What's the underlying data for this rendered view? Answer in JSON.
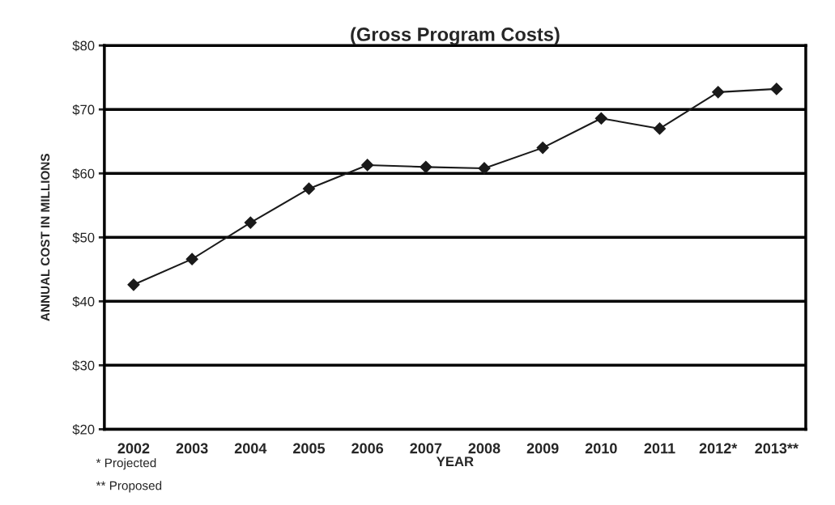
{
  "chart_data": {
    "type": "line",
    "title": "(Gross Program Costs)",
    "xlabel": "YEAR",
    "ylabel": "ANNUAL COST IN MILLIONS",
    "categories": [
      "2002",
      "2003",
      "2004",
      "2005",
      "2006",
      "2007",
      "2008",
      "2009",
      "2010",
      "2011",
      "2012*",
      "2013**"
    ],
    "series": [
      {
        "color": "#1a1a1a",
        "values": [
          42.6,
          46.6,
          52.3,
          57.6,
          61.3,
          61.0,
          60.8,
          64.0,
          68.6,
          67.0,
          72.7,
          73.2
        ]
      }
    ],
    "ylim": [
      20,
      80
    ],
    "yticks": [
      {
        "value": 20,
        "label": "$20"
      },
      {
        "value": 30,
        "label": "$30"
      },
      {
        "value": 40,
        "label": "$40"
      },
      {
        "value": 50,
        "label": "$50"
      },
      {
        "value": 60,
        "label": "$60"
      },
      {
        "value": 70,
        "label": "$70"
      },
      {
        "value": 80,
        "label": "$80"
      }
    ],
    "grid": "y",
    "marker": "diamond",
    "line_style": "solid",
    "annotations": [
      "* Projected",
      "** Proposed"
    ]
  }
}
